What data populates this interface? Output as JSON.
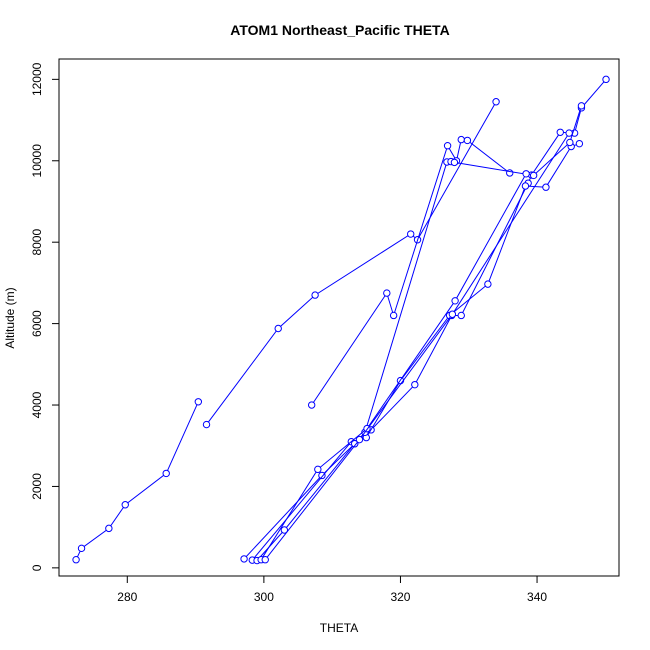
{
  "chart_data": {
    "type": "line",
    "title": "ATOM1 Northeast_Pacific THETA",
    "xlabel": "THETA",
    "ylabel": "Altitude (m)",
    "xlim": [
      270,
      352
    ],
    "ylim": [
      -200,
      12500
    ],
    "x_ticks": [
      280,
      300,
      320,
      340
    ],
    "y_ticks": [
      0,
      2000,
      4000,
      6000,
      8000,
      10000,
      12000
    ],
    "x_tick_labels": [
      "280",
      "300",
      "320",
      "340"
    ],
    "y_tick_labels": [
      "0",
      "2000",
      "4000",
      "6000",
      "8000",
      "10000",
      "12000"
    ],
    "line_color": "#0000ff",
    "marker": "open-circle",
    "grid": false,
    "series": [
      {
        "x": [
          272.5,
          273.3,
          277.3,
          279.7,
          285.7,
          290.4
        ],
        "y": [
          200,
          480,
          970,
          1550,
          2320,
          4080
        ]
      },
      {
        "x": [
          291.6,
          302.1,
          307.5,
          321.5,
          322.5,
          334.0
        ],
        "y": [
          3520,
          5880,
          6700,
          8200,
          8060,
          11450
        ]
      },
      {
        "x": [
          307.0,
          318.0,
          319.0,
          326.9,
          328.2,
          328.9,
          329.8,
          336.0
        ],
        "y": [
          4000,
          6750,
          6200,
          10370,
          10000,
          10520,
          10500,
          9700
        ]
      },
      {
        "x": [
          297.1,
          308.5,
          313.3,
          315.7,
          322.1,
          327.5,
          328.9,
          338.7,
          339.2,
          343.4,
          345.5,
          346.5,
          350.1
        ],
        "y": [
          220,
          2270,
          3050,
          3390,
          4500,
          6200,
          6200,
          9450,
          9650,
          10700,
          10680,
          11300,
          12000
        ]
      },
      {
        "x": [
          298.3,
          312.8,
          315.0,
          320.0,
          327.2,
          332.8,
          338.3,
          341.3,
          345.0,
          346.2
        ],
        "y": [
          190,
          3100,
          3200,
          4600,
          6200,
          6970,
          9380,
          9350,
          10350,
          10420
        ]
      },
      {
        "x": [
          299.0,
          303.0,
          313.3,
          314.8,
          326.8,
          327.4,
          327.9,
          339.5,
          344.8,
          346.5
        ],
        "y": [
          180,
          930,
          3050,
          3330,
          9970,
          9980,
          9960,
          9640,
          10450,
          11350
        ]
      },
      {
        "x": [
          299.6,
          307.9,
          315.1,
          328.0,
          338.4
        ],
        "y": [
          200,
          2420,
          3420,
          6560,
          9680
        ]
      },
      {
        "x": [
          300.2,
          314.0,
          327.6,
          344.7
        ],
        "y": [
          200,
          3150,
          6230,
          10680
        ]
      }
    ]
  }
}
